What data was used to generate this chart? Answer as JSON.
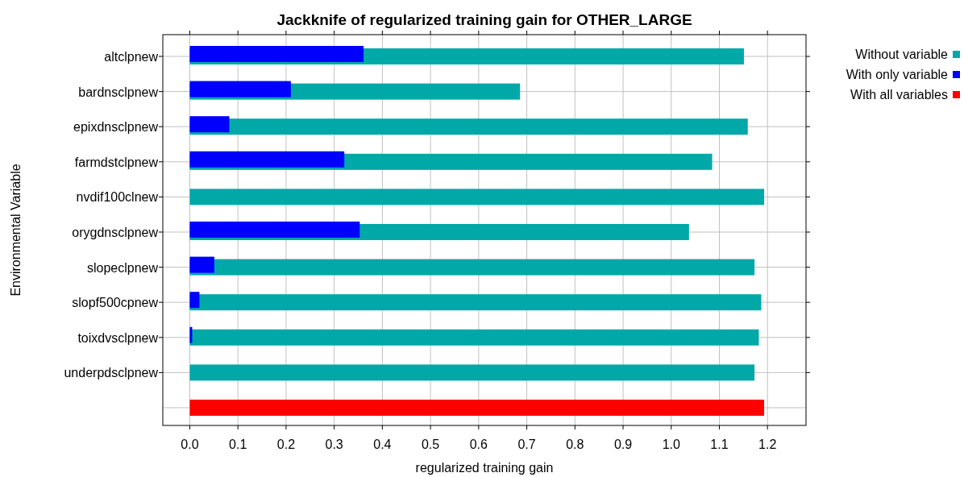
{
  "chart_data": {
    "type": "bar",
    "orientation": "horizontal",
    "title": "Jackknife of regularized training gain for OTHER_LARGE",
    "xlabel": "regularized training gain",
    "ylabel": "Environmental Variable",
    "categories": [
      "altclpnew",
      "bardnsclpnew",
      "epixdnsclpnew",
      "farmdstclpnew",
      "nvdif100clnew",
      "orygdnsclpnew",
      "slopeclpnew",
      "slopf500cpnew",
      "toixdvsclpnew",
      "underpdsclpnew",
      null
    ],
    "series": [
      {
        "name": "Without variable",
        "color": "#00a8a8",
        "values": [
          1.151,
          0.686,
          1.159,
          1.085,
          1.193,
          1.037,
          1.173,
          1.187,
          1.182,
          1.173,
          null
        ]
      },
      {
        "name": "With only variable",
        "color": "#0000ff",
        "values": [
          0.361,
          0.21,
          0.082,
          0.321,
          null,
          0.353,
          0.051,
          0.02,
          0.005,
          null,
          null
        ]
      },
      {
        "name": "With all variables",
        "color": "#ff0000",
        "values": [
          null,
          null,
          null,
          null,
          null,
          null,
          null,
          null,
          null,
          null,
          1.193
        ]
      }
    ],
    "xlim": [
      -0.056,
      1.28
    ],
    "xticks": [
      {
        "value": 0,
        "label": "0.0"
      },
      0.1,
      0.2,
      0.3,
      0.4,
      0.5,
      0.6,
      0.7,
      0.8,
      0.9,
      {
        "value": 1,
        "label": "1.0"
      },
      1.1,
      1.2
    ],
    "grid": true,
    "legend": "top right"
  }
}
